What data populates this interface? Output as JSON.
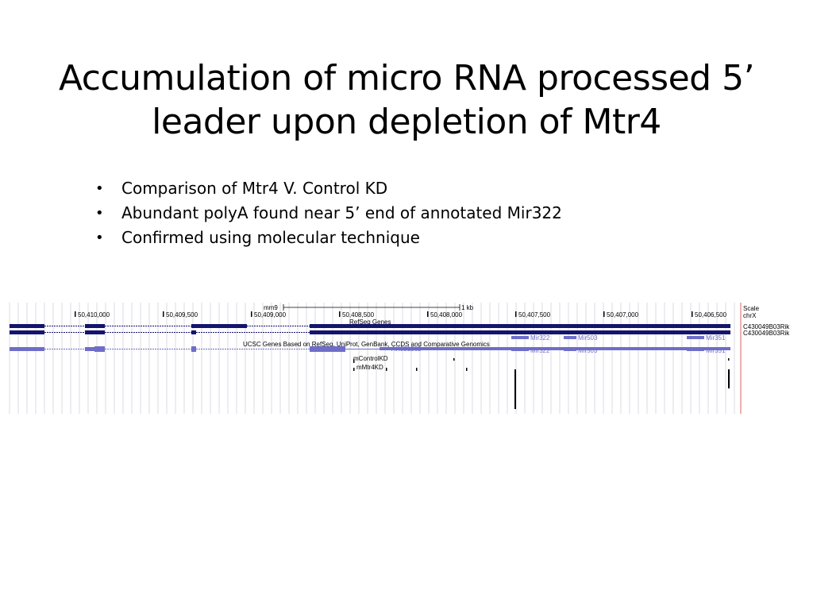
{
  "slide": {
    "title_lines": [
      "Accumulation of micro RNA processed 5’",
      "leader upon depletion of Mtr4"
    ],
    "bullets": [
      "Comparison of Mtr4 V. Control KD",
      "Abundant polyA found near 5’ end of annotated Mir322",
      "Confirmed using molecular technique"
    ]
  },
  "genome_browser": {
    "assembly": "mm9",
    "scale_bar_label": "1 kb",
    "ruler_positions": [
      "50,410,000",
      "50,409,500",
      "50,409,000",
      "50,408,500",
      "50,408,000",
      "50,407,500",
      "50,407,000",
      "50,406,500"
    ],
    "right_labels": {
      "scale": "Scale",
      "chrom": "chrX",
      "gene1": "C430049B03Rik",
      "gene2": "C430049B03Rik"
    },
    "tracks": {
      "refseq_title": "RefSeq Genes",
      "ucsc_title": "UCSC Genes Based on RefSeq, UniProt, GenBank, CCDS and Comparative Genomics",
      "refseq_genes": [
        "Mir322",
        "Mir503",
        "Mir351"
      ],
      "ucsc_genes": [
        "Mir322",
        "Mir503",
        "Mir351"
      ],
      "ucsc_transcript": "AK021262",
      "control_track": "mControlKD",
      "mtr4_track": "mMtr4KD"
    },
    "colors": {
      "refseq": "#14146e",
      "ucsc": "#6e6ec8",
      "grid": "#d2d2dc",
      "marker": "#e06060"
    }
  }
}
